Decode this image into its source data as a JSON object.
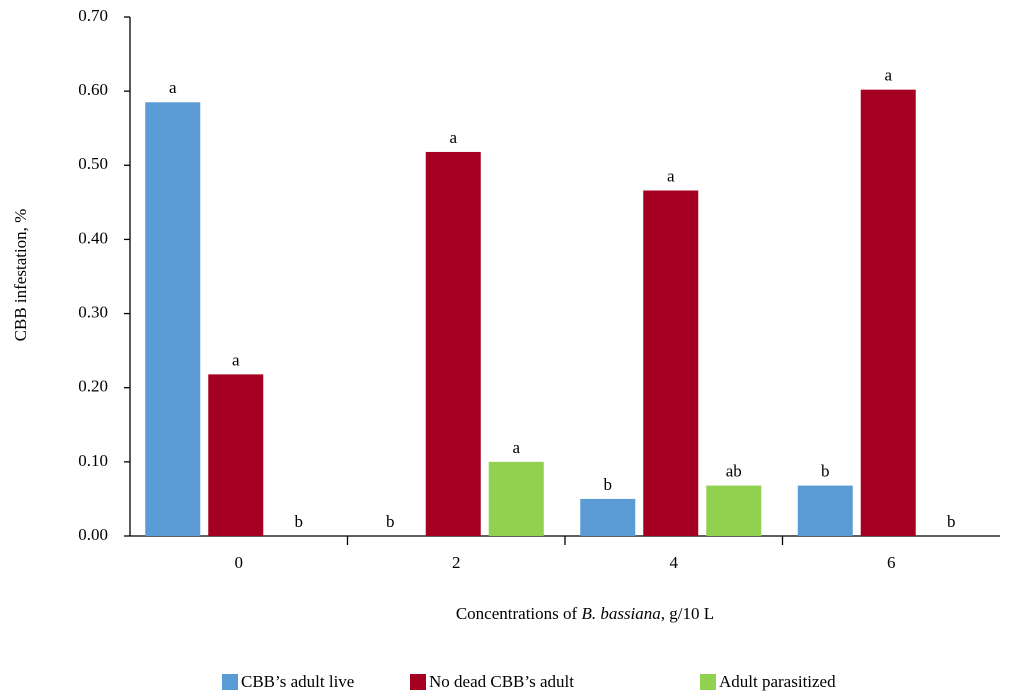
{
  "chart_data": {
    "type": "bar",
    "ylabel": "CBB infestation, %",
    "xlabel": [
      "Concentrations of ",
      "B. bassiana",
      ", g/10 L"
    ],
    "categories": [
      "0",
      "2",
      "4",
      "6"
    ],
    "series": [
      {
        "name": "CBB’s adult live",
        "color": "#5b9bd5",
        "values": [
          0.585,
          0,
          0.05,
          0.068
        ],
        "labels": [
          "a",
          "b",
          "b",
          "b"
        ]
      },
      {
        "name": "No dead CBB’s adult",
        "color": "#a50021",
        "values": [
          0.218,
          0.518,
          0.466,
          0.602
        ],
        "labels": [
          "a",
          "a",
          "a",
          "a"
        ]
      },
      {
        "name": "Adult parasitized",
        "color": "#92d050",
        "values": [
          0,
          0.1,
          0.068,
          0
        ],
        "labels": [
          "b",
          "a",
          "ab",
          "b"
        ]
      }
    ],
    "ylim": [
      0,
      0.7
    ],
    "yticks": [
      {
        "value": 0,
        "label": "0.00"
      },
      {
        "value": 0.1,
        "label": "0.10"
      },
      {
        "value": 0.2,
        "label": "0.20"
      },
      {
        "value": 0.3,
        "label": "0.30"
      },
      {
        "value": 0.4,
        "label": "0.40"
      },
      {
        "value": 0.5,
        "label": "0.50"
      },
      {
        "value": 0.6,
        "label": "0.60"
      },
      {
        "value": 0.7,
        "label": "0.70"
      }
    ]
  }
}
